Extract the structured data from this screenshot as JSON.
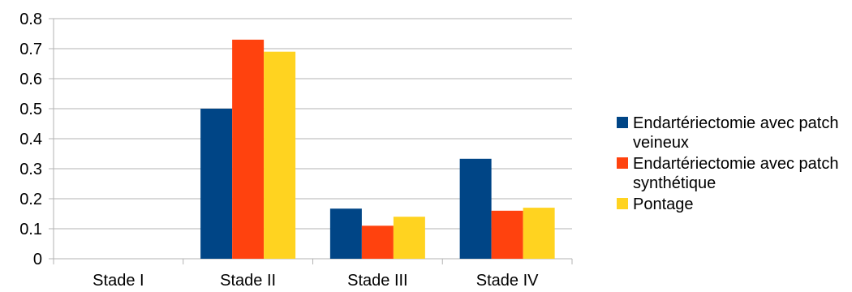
{
  "chart_data": {
    "type": "bar",
    "categories": [
      "Stade I",
      "Stade II",
      "Stade III",
      "Stade IV"
    ],
    "series": [
      {
        "name": "Endartériectomie avec patch veineux",
        "values": [
          0,
          0.5,
          0.167,
          0.333
        ],
        "color": "#004586"
      },
      {
        "name": "Endartériectomie avec patch synthétique",
        "values": [
          0,
          0.73,
          0.11,
          0.16
        ],
        "color": "#ff420e"
      },
      {
        "name": "Pontage",
        "values": [
          0,
          0.69,
          0.14,
          0.17
        ],
        "color": "#ffd320"
      }
    ],
    "ylim": [
      0,
      0.8
    ],
    "yticks": [
      "0",
      "0.1",
      "0.2",
      "0.3",
      "0.4",
      "0.5",
      "0.6",
      "0.7",
      "0.8"
    ],
    "grid": true,
    "legend_position": "right",
    "title": "",
    "xlabel": "",
    "ylabel": ""
  }
}
